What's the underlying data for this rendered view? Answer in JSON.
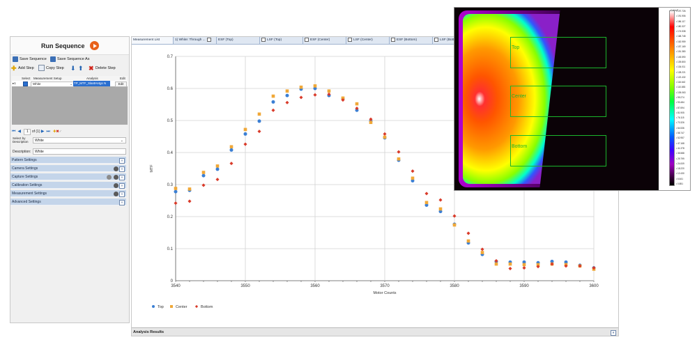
{
  "left": {
    "run_label": "Run Sequence",
    "save_label": "Save Sequence",
    "save_as_label": "Save Sequence As",
    "add_step_label": "Add Step",
    "copy_step_label": "Copy Step",
    "delete_step_label": "Delete Step",
    "grid": {
      "headers": [
        "Select",
        "Measurement Setup",
        "Analysis",
        "Edit"
      ],
      "row": {
        "num": "▸1",
        "setup": "White",
        "analysis": "TP_MTF_SlantHvtgs N",
        "edit": "Edit"
      }
    },
    "nav": {
      "page": "1",
      "of": "of (1)"
    },
    "select_by_label": "Select by Description",
    "select_by_value": "White",
    "description_label": "Description:",
    "description_value": "White",
    "sections": [
      "Pattern Settings",
      "Camera Settings",
      "Capture Settings",
      "Calibration Settings",
      "Measurement Settings",
      "Advanced Settings"
    ]
  },
  "tabs": [
    "Measurement List",
    "1) White: Through ...",
    "ESF (Top)",
    "LSF (Top)",
    "ESF (Center)",
    "LSF (Center)",
    "ESF (Bottom)",
    "LSF (Bottom)"
  ],
  "analysis_label": "Analysis Results",
  "overlay": {
    "zones": [
      "Top",
      "Center",
      "Bottom"
    ],
    "colorbar_title": "Cd/m²",
    "colorbar_ticks": [
      "197.726",
      "191.906",
      "186.117",
      "180.327",
      "174.538",
      "168.748",
      "162.959",
      "157.169",
      "151.380",
      "145.590",
      "139.800",
      "134.011",
      "128.221",
      "122.432",
      "116.642",
      "110.853",
      "105.063",
      "99.274",
      "93.484",
      "87.694",
      "81.905",
      "76.115",
      "70.326",
      "64.536",
      "58.747",
      "52.957",
      "47.168",
      "41.378",
      "35.588",
      "29.799",
      "24.009",
      "18.220",
      "12.430",
      "6.641",
      "0.851"
    ],
    "colors": {
      "zone_border": "#1bb52c"
    }
  },
  "chart_data": {
    "type": "scatter",
    "xlabel": "Motor Counts",
    "ylabel": "MTF",
    "xlim": [
      3540,
      3600
    ],
    "ylim": [
      0,
      0.7
    ],
    "x_ticks": [
      "3540",
      "3550",
      "3560",
      "3570",
      "3580",
      "3590",
      "3600"
    ],
    "y_ticks": [
      "0",
      "0.1",
      "0.2",
      "0.3",
      "0.4",
      "0.5",
      "0.6",
      "0.7"
    ],
    "grid": true,
    "legend_position": "bottom-left",
    "series": [
      {
        "name": "Top",
        "color": "#3b7fd4",
        "x": [
          3540,
          3542,
          3544,
          3546,
          3548,
          3550,
          3552,
          3554,
          3556,
          3558,
          3560,
          3562,
          3564,
          3566,
          3568,
          3570,
          3572,
          3574,
          3576,
          3578,
          3580,
          3582,
          3584,
          3586,
          3588,
          3590,
          3592,
          3594,
          3596,
          3598,
          3600
        ],
        "y": [
          0.278,
          0.282,
          0.328,
          0.348,
          0.408,
          0.458,
          0.498,
          0.558,
          0.578,
          0.598,
          0.6,
          0.578,
          0.568,
          0.532,
          0.498,
          0.446,
          0.376,
          0.312,
          0.236,
          0.216,
          0.176,
          0.118,
          0.082,
          0.06,
          0.058,
          0.058,
          0.056,
          0.06,
          0.058,
          0.048,
          0.04
        ]
      },
      {
        "name": "Center",
        "color": "#f0a838",
        "x": [
          3540,
          3542,
          3544,
          3546,
          3548,
          3550,
          3552,
          3554,
          3556,
          3558,
          3560,
          3562,
          3564,
          3566,
          3568,
          3570,
          3572,
          3574,
          3576,
          3578,
          3580,
          3582,
          3584,
          3586,
          3588,
          3590,
          3592,
          3594,
          3596,
          3598,
          3600
        ],
        "y": [
          0.288,
          0.286,
          0.338,
          0.358,
          0.418,
          0.472,
          0.52,
          0.576,
          0.592,
          0.604,
          0.608,
          0.592,
          0.57,
          0.552,
          0.494,
          0.448,
          0.38,
          0.32,
          0.244,
          0.224,
          0.174,
          0.124,
          0.088,
          0.052,
          0.052,
          0.05,
          0.05,
          0.052,
          0.05,
          0.046,
          0.036
        ]
      },
      {
        "name": "Bottom",
        "color": "#d93b2a",
        "x": [
          3540,
          3542,
          3544,
          3546,
          3548,
          3550,
          3552,
          3554,
          3556,
          3558,
          3560,
          3562,
          3564,
          3566,
          3568,
          3570,
          3572,
          3574,
          3576,
          3578,
          3580,
          3582,
          3584,
          3586,
          3588,
          3590,
          3592,
          3594,
          3596,
          3598,
          3600
        ],
        "y": [
          0.242,
          0.248,
          0.298,
          0.316,
          0.366,
          0.426,
          0.466,
          0.532,
          0.556,
          0.572,
          0.58,
          0.582,
          0.564,
          0.538,
          0.504,
          0.458,
          0.402,
          0.342,
          0.272,
          0.252,
          0.202,
          0.148,
          0.098,
          0.062,
          0.038,
          0.04,
          0.044,
          0.052,
          0.046,
          0.046,
          0.04
        ]
      }
    ]
  }
}
